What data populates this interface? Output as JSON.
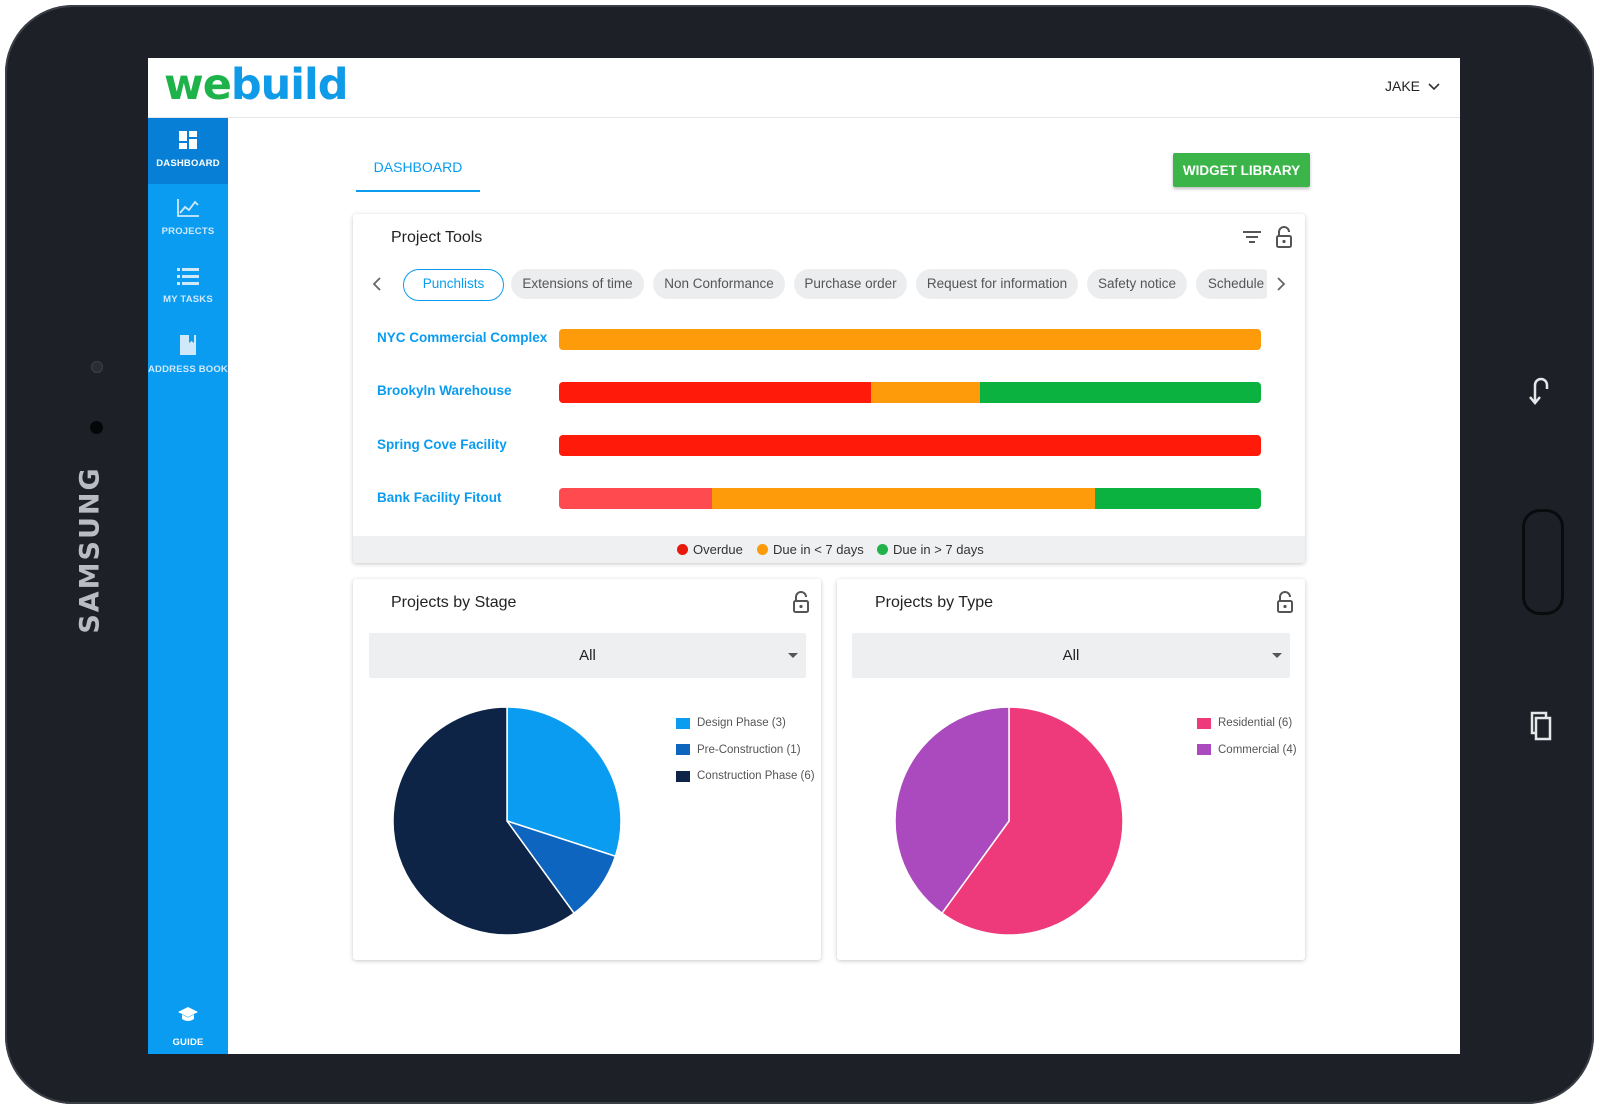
{
  "device": {
    "brand": "SAMSUNG"
  },
  "app": {
    "logo_we": "we",
    "logo_build": "build",
    "user_name": "JAKE"
  },
  "sidebar": {
    "items": [
      {
        "label": "DASHBOARD",
        "icon": "dashboard-icon",
        "active": true
      },
      {
        "label": "PROJECTS",
        "icon": "chart-line-icon",
        "active": false
      },
      {
        "label": "MY TASKS",
        "icon": "list-icon",
        "active": false
      },
      {
        "label": "ADDRESS BOOK",
        "icon": "book-icon",
        "active": false
      }
    ],
    "guide_label": "GUIDE"
  },
  "header": {
    "tab_label": "DASHBOARD",
    "widget_library_label": "WIDGET LIBRARY"
  },
  "project_tools": {
    "title": "Project Tools",
    "chips": [
      "Punchlists",
      "Extensions of time",
      "Non Conformance",
      "Purchase order",
      "Request for information",
      "Safety notice",
      "Schedule"
    ],
    "active_chip": "Punchlists",
    "projects": [
      {
        "name": "NYC Commercial Complex",
        "segments": [
          {
            "status": "due_soon",
            "fraction": 1.0
          }
        ]
      },
      {
        "name": "Brookyln Warehouse",
        "segments": [
          {
            "status": "overdue",
            "fraction": 0.445
          },
          {
            "status": "due_soon",
            "fraction": 0.155
          },
          {
            "status": "due_later",
            "fraction": 0.4
          }
        ]
      },
      {
        "name": "Spring Cove Facility",
        "segments": [
          {
            "status": "overdue",
            "fraction": 1.0
          }
        ]
      },
      {
        "name": "Bank Facility Fitout",
        "segments": [
          {
            "status": "overdue_light",
            "fraction": 0.218
          },
          {
            "status": "due_soon",
            "fraction": 0.546
          },
          {
            "status": "due_later",
            "fraction": 0.236
          }
        ]
      }
    ],
    "legend": [
      {
        "label": "Overdue",
        "color": "#e8180c"
      },
      {
        "label": "Due in < 7 days",
        "color": "#fb9a0a"
      },
      {
        "label": "Due in > 7 days",
        "color": "#21b34a"
      }
    ],
    "colors": {
      "overdue": "#ff1a0a",
      "overdue_light": "#ff4a50",
      "due_soon": "#fd9b0a",
      "due_later": "#0cb23f"
    }
  },
  "projects_by_stage": {
    "title": "Projects by Stage",
    "filter_value": "All",
    "legend": [
      {
        "label": "Design Phase (3)",
        "color": "#0a9cf0"
      },
      {
        "label": "Pre-Construction (1)",
        "color": "#0d65bf"
      },
      {
        "label": "Construction Phase (6)",
        "color": "#0d2447"
      }
    ]
  },
  "projects_by_type": {
    "title": "Projects by Type",
    "filter_value": "All",
    "legend": [
      {
        "label": "Residential (6)",
        "color": "#ee3a7b"
      },
      {
        "label": "Commercial (4)",
        "color": "#ab49bf"
      }
    ]
  },
  "chart_data": [
    {
      "type": "pie",
      "title": "Projects by Stage",
      "categories": [
        "Design Phase",
        "Pre-Construction",
        "Construction Phase"
      ],
      "values": [
        3,
        1,
        6
      ],
      "colors": [
        "#0a9cf0",
        "#0d65bf",
        "#0d2447"
      ]
    },
    {
      "type": "pie",
      "title": "Projects by Type",
      "categories": [
        "Residential",
        "Commercial"
      ],
      "values": [
        6,
        4
      ],
      "colors": [
        "#ee3a7b",
        "#ab49bf"
      ]
    }
  ]
}
